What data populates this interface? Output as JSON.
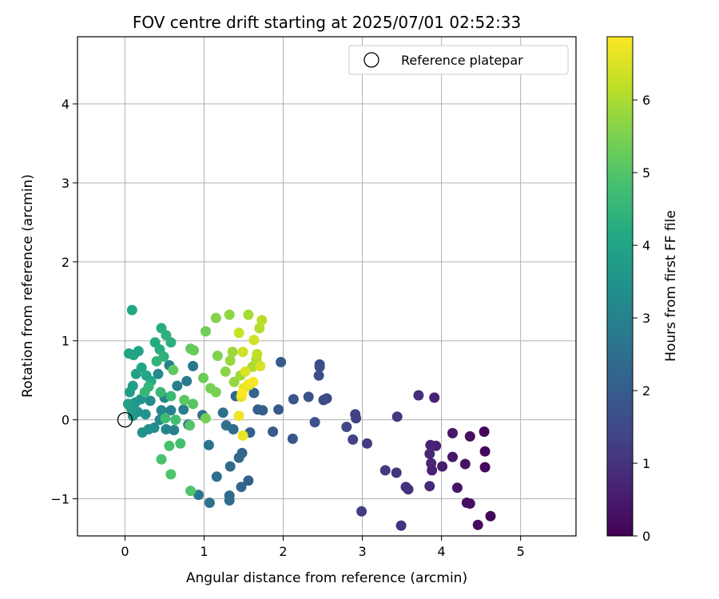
{
  "chart_data": {
    "type": "scatter",
    "title": "FOV centre drift starting at 2025/07/01 02:52:33",
    "xlabel": "Angular distance from reference (arcmin)",
    "ylabel": "Rotation from reference (arcmin)",
    "xlim": [
      -0.6,
      5.7
    ],
    "ylim": [
      -1.47,
      4.85
    ],
    "xticks": [
      0,
      1,
      2,
      3,
      4,
      5
    ],
    "yticks": [
      -1,
      0,
      1,
      2,
      3,
      4
    ],
    "xtick_labels": [
      "0",
      "1",
      "2",
      "3",
      "4",
      "5"
    ],
    "ytick_labels": [
      "−1",
      "0",
      "1",
      "2",
      "3",
      "4"
    ],
    "grid": true,
    "legend": {
      "position": "top-right",
      "entries": [
        "Reference platepar"
      ]
    },
    "reference_point": {
      "x": 0,
      "y": 0
    },
    "colorbar": {
      "label": "Hours from first FF file",
      "range": [
        0,
        6.87
      ],
      "ticks": [
        0,
        1,
        2,
        3,
        4,
        5,
        6
      ],
      "tick_labels": [
        "0",
        "1",
        "2",
        "3",
        "4",
        "5",
        "6"
      ],
      "colormap": "viridis"
    },
    "point_columns": [
      "x",
      "y",
      "hours"
    ],
    "points": [
      [
        4.54,
        -0.15,
        0.1
      ],
      [
        4.62,
        -1.22,
        0.1
      ],
      [
        4.55,
        -0.4,
        0.15
      ],
      [
        4.55,
        -0.6,
        0.15
      ],
      [
        4.46,
        -1.33,
        0.2
      ],
      [
        4.36,
        -0.21,
        0.25
      ],
      [
        4.36,
        -1.06,
        0.3
      ],
      [
        4.32,
        -1.05,
        0.3
      ],
      [
        4.3,
        -0.56,
        0.35
      ],
      [
        4.2,
        -0.86,
        0.4
      ],
      [
        4.14,
        -0.17,
        0.45
      ],
      [
        4.14,
        -0.47,
        0.45
      ],
      [
        4.01,
        -0.59,
        0.55
      ],
      [
        3.93,
        -0.33,
        0.6
      ],
      [
        3.91,
        0.28,
        0.65
      ],
      [
        3.88,
        -0.64,
        0.65
      ],
      [
        3.87,
        -0.55,
        0.7
      ],
      [
        3.86,
        -0.32,
        0.7
      ],
      [
        3.85,
        -0.43,
        0.75
      ],
      [
        3.85,
        -0.84,
        0.8
      ],
      [
        3.71,
        0.31,
        0.85
      ],
      [
        3.58,
        -0.88,
        0.9
      ],
      [
        3.55,
        -0.85,
        0.95
      ],
      [
        3.49,
        -1.34,
        1.0
      ],
      [
        3.43,
        -0.67,
        1.05
      ],
      [
        3.44,
        0.04,
        1.1
      ],
      [
        3.29,
        -0.64,
        1.15
      ],
      [
        3.06,
        -0.3,
        1.2
      ],
      [
        2.99,
        -1.16,
        1.25
      ],
      [
        2.92,
        0.02,
        1.3
      ],
      [
        2.91,
        0.07,
        1.35
      ],
      [
        2.88,
        -0.25,
        1.4
      ],
      [
        2.8,
        -0.09,
        1.45
      ],
      [
        2.55,
        0.27,
        1.5
      ],
      [
        2.51,
        0.25,
        1.55
      ],
      [
        2.46,
        0.7,
        1.6
      ],
      [
        2.45,
        0.56,
        1.6
      ],
      [
        2.46,
        0.67,
        1.65
      ],
      [
        2.4,
        -0.03,
        1.7
      ],
      [
        2.32,
        0.29,
        1.75
      ],
      [
        2.13,
        0.26,
        1.8
      ],
      [
        2.12,
        -0.24,
        1.85
      ],
      [
        1.97,
        0.73,
        1.9
      ],
      [
        1.94,
        0.13,
        1.9
      ],
      [
        1.87,
        -0.15,
        1.95
      ],
      [
        1.74,
        0.12,
        2.0
      ],
      [
        1.68,
        0.13,
        2.05
      ],
      [
        1.58,
        -0.16,
        2.1
      ],
      [
        1.56,
        -0.77,
        2.1
      ],
      [
        1.63,
        0.34,
        2.15
      ],
      [
        1.47,
        -0.85,
        2.2
      ],
      [
        1.48,
        -0.42,
        2.25
      ],
      [
        1.44,
        -0.48,
        2.3
      ],
      [
        1.4,
        0.3,
        2.3
      ],
      [
        1.37,
        -0.12,
        2.35
      ],
      [
        1.33,
        -0.59,
        2.4
      ],
      [
        1.32,
        -0.96,
        2.4
      ],
      [
        1.32,
        -1.02,
        2.45
      ],
      [
        1.28,
        -0.07,
        2.5
      ],
      [
        1.24,
        0.09,
        2.5
      ],
      [
        1.16,
        -0.72,
        2.55
      ],
      [
        1.07,
        -1.05,
        2.6
      ],
      [
        1.06,
        -0.32,
        2.6
      ],
      [
        0.98,
        0.06,
        2.65
      ],
      [
        0.93,
        -0.95,
        2.7
      ],
      [
        0.86,
        0.68,
        2.75
      ],
      [
        0.8,
        -0.06,
        2.8
      ],
      [
        0.78,
        0.49,
        2.85
      ],
      [
        0.74,
        0.13,
        2.9
      ],
      [
        0.66,
        0.43,
        2.95
      ],
      [
        0.62,
        -0.13,
        3.0
      ],
      [
        0.58,
        0.12,
        3.0
      ],
      [
        0.56,
        0.69,
        3.05
      ],
      [
        0.52,
        -0.12,
        3.1
      ],
      [
        0.5,
        0.28,
        3.15
      ],
      [
        0.46,
        0.12,
        3.2
      ],
      [
        0.44,
        0.0,
        3.2
      ],
      [
        0.42,
        0.58,
        3.25
      ],
      [
        0.37,
        -0.1,
        3.3
      ],
      [
        0.32,
        0.24,
        3.35
      ],
      [
        0.3,
        -0.12,
        3.4
      ],
      [
        0.26,
        0.07,
        3.45
      ],
      [
        0.22,
        -0.16,
        3.5
      ],
      [
        0.2,
        0.26,
        3.5
      ],
      [
        0.16,
        0.1,
        3.55
      ],
      [
        0.13,
        0.22,
        3.6
      ],
      [
        0.1,
        0.05,
        3.65
      ],
      [
        0.08,
        0.14,
        3.7
      ],
      [
        0.06,
        0.35,
        3.75
      ],
      [
        0.04,
        0.2,
        3.8
      ],
      [
        0.1,
        0.43,
        3.85
      ],
      [
        0.14,
        0.58,
        3.9
      ],
      [
        0.17,
        0.87,
        3.95
      ],
      [
        0.11,
        0.82,
        4.0
      ],
      [
        0.05,
        0.84,
        4.05
      ],
      [
        0.09,
        1.39,
        4.05
      ],
      [
        0.21,
        0.66,
        4.1
      ],
      [
        0.27,
        0.56,
        4.1
      ],
      [
        0.33,
        0.49,
        4.15
      ],
      [
        0.38,
        0.98,
        4.2
      ],
      [
        0.44,
        0.89,
        4.25
      ],
      [
        0.46,
        1.16,
        4.3
      ],
      [
        0.52,
        1.07,
        4.35
      ],
      [
        0.58,
        0.98,
        4.35
      ],
      [
        0.49,
        0.8,
        4.4
      ],
      [
        0.4,
        0.74,
        4.45
      ],
      [
        0.3,
        0.42,
        4.5
      ],
      [
        0.25,
        0.35,
        4.55
      ],
      [
        0.45,
        0.35,
        4.6
      ],
      [
        0.58,
        0.3,
        4.65
      ],
      [
        0.51,
        0.02,
        4.7
      ],
      [
        0.64,
        0.0,
        4.75
      ],
      [
        0.7,
        -0.3,
        4.8
      ],
      [
        0.56,
        -0.33,
        4.85
      ],
      [
        0.46,
        -0.5,
        4.9
      ],
      [
        0.58,
        -0.69,
        4.95
      ],
      [
        0.83,
        -0.9,
        4.95
      ],
      [
        0.82,
        -0.07,
        5.0
      ],
      [
        0.86,
        0.2,
        5.05
      ],
      [
        0.75,
        0.25,
        5.1
      ],
      [
        0.61,
        0.63,
        5.15
      ],
      [
        0.83,
        0.9,
        5.2
      ],
      [
        0.87,
        0.88,
        5.25
      ],
      [
        0.99,
        0.53,
        5.3
      ],
      [
        1.02,
        1.12,
        5.35
      ],
      [
        1.02,
        0.02,
        5.4
      ],
      [
        1.08,
        0.4,
        5.45
      ],
      [
        1.15,
        0.35,
        5.5
      ],
      [
        1.17,
        0.81,
        5.55
      ],
      [
        1.15,
        1.29,
        5.6
      ],
      [
        1.27,
        0.61,
        5.65
      ],
      [
        1.32,
        1.33,
        5.7
      ],
      [
        1.38,
        0.48,
        5.75
      ],
      [
        1.33,
        0.75,
        5.8
      ],
      [
        1.36,
        0.86,
        5.85
      ],
      [
        1.46,
        0.56,
        5.9
      ],
      [
        1.56,
        1.33,
        5.95
      ],
      [
        1.61,
        0.67,
        6.0
      ],
      [
        1.66,
        0.76,
        6.05
      ],
      [
        1.7,
        1.16,
        6.1
      ],
      [
        1.73,
        1.26,
        6.15
      ],
      [
        1.67,
        0.83,
        6.2
      ],
      [
        1.57,
        0.44,
        6.25
      ],
      [
        1.44,
        1.1,
        6.3
      ],
      [
        1.49,
        0.86,
        6.35
      ],
      [
        1.63,
        1.01,
        6.4
      ],
      [
        1.71,
        0.68,
        6.45
      ],
      [
        1.52,
        0.61,
        6.5
      ],
      [
        1.47,
        0.29,
        6.55
      ],
      [
        1.5,
        0.4,
        6.6
      ],
      [
        1.49,
        -0.2,
        6.65
      ],
      [
        1.44,
        0.05,
        6.7
      ],
      [
        1.56,
        0.45,
        6.75
      ],
      [
        1.62,
        0.48,
        6.8
      ],
      [
        1.48,
        0.33,
        6.85
      ]
    ]
  }
}
